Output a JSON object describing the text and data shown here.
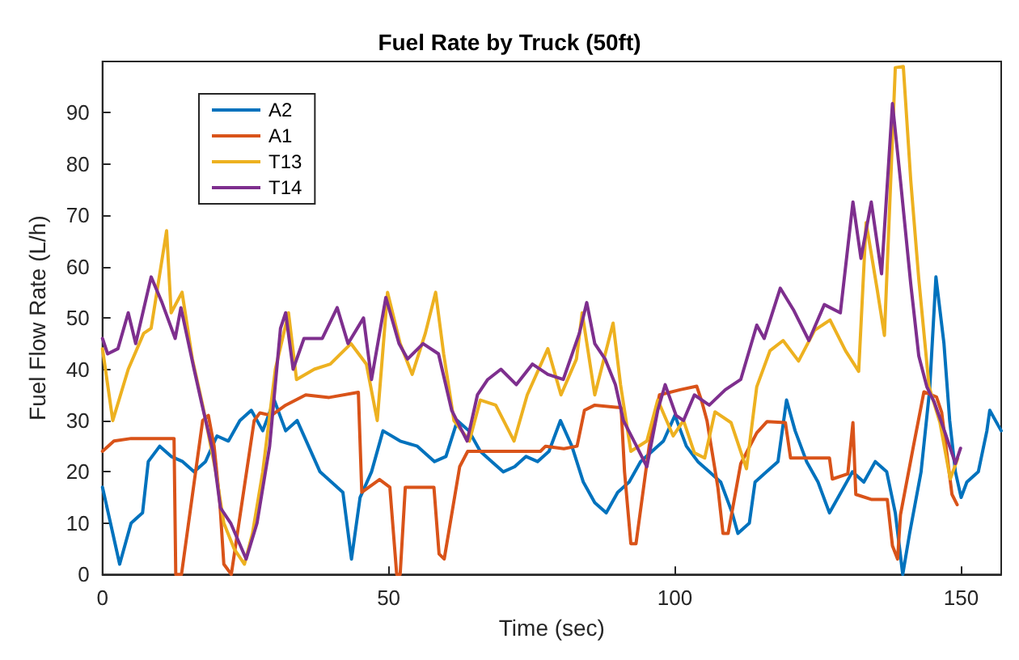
{
  "chart_data": {
    "type": "line",
    "title": "Fuel Rate by Truck (50ft)",
    "xlabel": "Time (sec)",
    "ylabel": "Fuel Flow Rate (L/h)",
    "xlim": [
      0,
      157
    ],
    "ylim": [
      0,
      100
    ],
    "xticks": [
      0,
      50,
      100,
      150
    ],
    "yticks": [
      0,
      10,
      20,
      30,
      40,
      50,
      60,
      70,
      80,
      90
    ],
    "grid": false,
    "legend": "top left",
    "marker": "none",
    "line_style": "solid",
    "series": [
      {
        "name": "A2",
        "color": "#0072bd",
        "x": [
          0,
          3,
          5,
          7,
          8,
          10,
          12,
          14,
          16,
          18,
          20,
          22,
          24,
          26,
          28,
          30,
          32,
          34,
          36,
          38,
          40,
          42,
          43.5,
          45,
          47,
          49,
          52,
          55,
          58,
          60,
          62,
          64,
          66,
          68,
          70,
          72,
          74,
          76,
          78,
          80,
          82,
          84,
          86,
          88,
          90,
          92,
          94,
          96,
          98,
          100,
          102,
          104,
          106,
          108,
          110,
          111,
          113,
          114,
          116,
          118,
          119.5,
          121,
          123,
          125,
          127,
          129,
          131,
          133,
          135,
          137,
          138.5,
          139.8,
          141,
          143,
          144.5,
          145.6,
          147,
          148,
          149,
          150,
          151,
          153,
          154.5,
          155,
          157
        ],
        "values": [
          17,
          2,
          10,
          12,
          22,
          25,
          23,
          22,
          20,
          22,
          27,
          26,
          30,
          32,
          28,
          34,
          28,
          30,
          25,
          20,
          18,
          16,
          3,
          15,
          20,
          28,
          26,
          25,
          22,
          23,
          30,
          28,
          24,
          22,
          20,
          21,
          23,
          22,
          24,
          30,
          25,
          18,
          14,
          12,
          16,
          18,
          22,
          24,
          26,
          31,
          25,
          22,
          20,
          18,
          12,
          8,
          10,
          18,
          20,
          22,
          34,
          28,
          22,
          18,
          12,
          16,
          20,
          18,
          22,
          20,
          12,
          0,
          8,
          20,
          36,
          58,
          45,
          30,
          20,
          15,
          18,
          20,
          28,
          32,
          28
        ]
      },
      {
        "name": "A1",
        "color": "#d95319",
        "x": [
          0,
          2,
          5,
          12.5,
          12.8,
          13.8,
          17.5,
          18.5,
          19.5,
          20.5,
          21.2,
          22.5,
          26.5,
          27.5,
          29.5,
          32,
          35.5,
          39.6,
          44.7,
          45.3,
          48.4,
          50.2,
          51.4,
          52,
          52.9,
          57.9,
          58.8,
          59.7,
          62.4,
          63.8,
          76.5,
          77.4,
          80.6,
          82.9,
          84.2,
          86,
          90.6,
          91.2,
          92.3,
          93.2,
          95.5,
          97.3,
          100.9,
          103.8,
          104.7,
          105.6,
          107.5,
          108.4,
          109.3,
          111.5,
          114.3,
          116.1,
          119.3,
          120.2,
          127,
          127.5,
          130.2,
          131.1,
          131.6,
          134.4,
          137.1,
          138,
          138.9,
          139.4,
          141.6,
          143.5,
          145.7,
          146.6,
          148.4,
          149.3
        ],
        "values": [
          24,
          26,
          26.5,
          26.5,
          0,
          0,
          30,
          31,
          25,
          14,
          2,
          0,
          30,
          31.5,
          31,
          33,
          35,
          34.5,
          35.5,
          16,
          18.5,
          17,
          0,
          0,
          17,
          17,
          4,
          3,
          21,
          24,
          24,
          25,
          24.5,
          25,
          32,
          33,
          32.5,
          20,
          6,
          6,
          25,
          35,
          36,
          36.7,
          33.7,
          30,
          17,
          8,
          8,
          21.6,
          27.6,
          29.8,
          29.6,
          22.7,
          22.7,
          18.6,
          19.6,
          29.6,
          15.6,
          14.6,
          14.6,
          5.6,
          3,
          11.6,
          24.6,
          35.6,
          34.6,
          31.6,
          15.6,
          13.6
        ]
      },
      {
        "name": "T13",
        "color": "#edb120",
        "x": [
          0,
          1.8,
          4.5,
          7.2,
          8.5,
          11.2,
          12,
          13.9,
          15.7,
          17.5,
          19.8,
          21.2,
          23,
          24.8,
          26.2,
          28,
          30.2,
          32.5,
          33.9,
          37,
          39.8,
          43.4,
          46.1,
          48,
          49.8,
          52,
          54.1,
          56.4,
          58.2,
          59.6,
          61.4,
          64.1,
          66,
          68.7,
          71.9,
          74.2,
          77.8,
          80.1,
          82.8,
          83.8,
          86,
          89.2,
          90.5,
          92.3,
          95.1,
          97,
          99.7,
          101.5,
          103.4,
          105.2,
          107,
          109.8,
          112.5,
          114.3,
          116.6,
          118.9,
          121.6,
          124.4,
          127.1,
          129.8,
          132.1,
          133.4,
          135.3,
          136.6,
          138.5,
          139.9,
          141.2,
          142.6,
          144.4,
          146.3,
          148.1,
          149.4
        ],
        "values": [
          44,
          30,
          40,
          47,
          48,
          67,
          51,
          55,
          42,
          33,
          20,
          10,
          5,
          2,
          8,
          20,
          40,
          51,
          38,
          40,
          41,
          45,
          41,
          30,
          55,
          45,
          39,
          47,
          55,
          43,
          30,
          26,
          34,
          33,
          26,
          35,
          44,
          35,
          42,
          51,
          35,
          49,
          37,
          24,
          26,
          34,
          27,
          30,
          23.7,
          22.7,
          31.7,
          29.6,
          20.6,
          36.6,
          43.6,
          45.6,
          41.6,
          47.6,
          49.6,
          43.6,
          39.6,
          68.6,
          55.8,
          46.6,
          98.8,
          99,
          76.8,
          57.6,
          36.6,
          29.6,
          18.6,
          22.6
        ]
      },
      {
        "name": "T14",
        "color": "#7e2f8e",
        "x": [
          0,
          0.9,
          2.7,
          4.5,
          5.8,
          8.5,
          10.4,
          12.7,
          13.7,
          16,
          17.4,
          19.3,
          20.6,
          22.4,
          25.1,
          27,
          29.2,
          31.1,
          32,
          33.3,
          35.2,
          38.4,
          41,
          42.9,
          45.6,
          47,
          49.5,
          51.8,
          53.3,
          56,
          58.7,
          61,
          63.7,
          65.5,
          67.3,
          69.6,
          72.3,
          75.1,
          77.8,
          80.5,
          83.3,
          84.6,
          86,
          87.8,
          89.6,
          91,
          93.3,
          95.1,
          97,
          98.3,
          100.2,
          101.5,
          103.4,
          106,
          108.8,
          111.5,
          114.3,
          115.6,
          118.4,
          120.7,
          123.4,
          126.1,
          128.9,
          131.1,
          132.5,
          134.3,
          136.1,
          138,
          139.4,
          141.2,
          142.6,
          144,
          145.3,
          147.2,
          149,
          149.9
        ],
        "values": [
          46,
          43,
          44,
          51,
          45,
          58,
          53,
          46,
          52,
          40,
          33,
          24,
          13,
          10,
          3,
          10,
          25,
          48,
          51,
          40,
          46,
          46,
          52,
          45,
          50,
          38,
          54,
          45,
          42,
          45,
          43,
          32,
          26,
          35,
          38,
          40,
          37,
          41,
          39,
          38,
          47,
          53,
          45,
          42,
          37,
          30,
          25,
          21,
          32,
          37,
          31,
          30,
          35,
          33,
          36,
          38,
          48.6,
          46,
          55.8,
          51.6,
          45.6,
          52.6,
          51,
          72.6,
          61.6,
          72.6,
          58.6,
          91.8,
          76.8,
          56.6,
          42.6,
          36.6,
          33.6,
          27.6,
          21.6,
          24.6
        ]
      }
    ]
  }
}
